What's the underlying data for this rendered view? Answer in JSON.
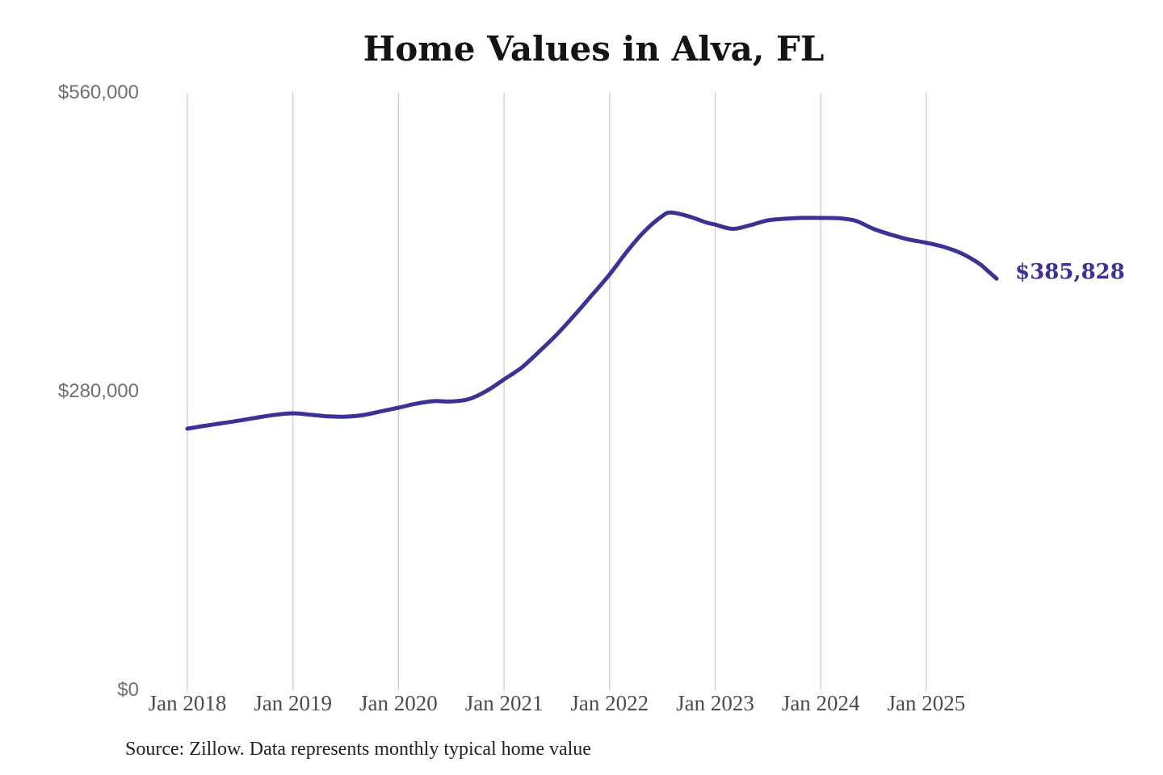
{
  "title": "Home Values in Alva, FL",
  "source_note": "Source: Zillow. Data represents monthly typical home value",
  "colors": {
    "line": "#3a3295",
    "annotation": "#3a3295",
    "gridline": "#cccccc",
    "y_tick_label": "#6f6f6f",
    "x_tick_label": "#4c4c4c",
    "title": "#141414",
    "source": "#222222",
    "background": "#ffffff"
  },
  "chart_data": {
    "type": "line",
    "title": "Home Values in Alva, FL",
    "unit": "USD",
    "ylim": [
      0,
      560000
    ],
    "grid": "vertical",
    "legend": "none",
    "final_value": 385828,
    "final_value_label": "$385,828",
    "y_ticks": [
      {
        "label": "$560,000",
        "value": 560000
      },
      {
        "label": "$280,000",
        "value": 280000
      },
      {
        "label": "$0",
        "value": 0
      }
    ],
    "x_ticks": [
      {
        "label": "Jan 2018",
        "year": 2018
      },
      {
        "label": "Jan 2019",
        "year": 2019
      },
      {
        "label": "Jan 2020",
        "year": 2020
      },
      {
        "label": "Jan 2021",
        "year": 2021
      },
      {
        "label": "Jan 2022",
        "year": 2022
      },
      {
        "label": "Jan 2023",
        "year": 2023
      },
      {
        "label": "Jan 2024",
        "year": 2024
      },
      {
        "label": "Jan 2025",
        "year": 2025
      }
    ],
    "series": [
      {
        "name": "Monthly typical home value",
        "points": [
          [
            "2018-01",
            245200
          ],
          [
            "2018-03",
            247900
          ],
          [
            "2018-05",
            250400
          ],
          [
            "2018-07",
            252900
          ],
          [
            "2018-09",
            255700
          ],
          [
            "2018-11",
            258200
          ],
          [
            "2019-01",
            259600
          ],
          [
            "2019-03",
            258300
          ],
          [
            "2019-05",
            256700
          ],
          [
            "2019-07",
            256500
          ],
          [
            "2019-09",
            258000
          ],
          [
            "2019-11",
            261400
          ],
          [
            "2020-01",
            264900
          ],
          [
            "2020-03",
            268600
          ],
          [
            "2020-05",
            271000
          ],
          [
            "2020-07",
            270700
          ],
          [
            "2020-09",
            272900
          ],
          [
            "2020-11",
            280500
          ],
          [
            "2021-01",
            291400
          ],
          [
            "2021-03",
            302500
          ],
          [
            "2021-05",
            317500
          ],
          [
            "2021-07",
            333500
          ],
          [
            "2021-09",
            351500
          ],
          [
            "2021-11",
            370500
          ],
          [
            "2022-01",
            389700
          ],
          [
            "2022-03",
            411500
          ],
          [
            "2022-05",
            430500
          ],
          [
            "2022-07",
            444500
          ],
          [
            "2022-08",
            447800
          ],
          [
            "2022-10",
            444200
          ],
          [
            "2022-12",
            438500
          ],
          [
            "2023-01",
            436500
          ],
          [
            "2023-03",
            432500
          ],
          [
            "2023-05",
            436000
          ],
          [
            "2023-07",
            440500
          ],
          [
            "2023-09",
            442000
          ],
          [
            "2023-11",
            442800
          ],
          [
            "2024-01",
            442700
          ],
          [
            "2024-03",
            442500
          ],
          [
            "2024-05",
            440000
          ],
          [
            "2024-07",
            432500
          ],
          [
            "2024-09",
            427000
          ],
          [
            "2024-11",
            422500
          ],
          [
            "2025-01",
            419500
          ],
          [
            "2025-03",
            415500
          ],
          [
            "2025-05",
            409500
          ],
          [
            "2025-07",
            400000
          ],
          [
            "2025-08",
            393000
          ],
          [
            "2025-09",
            385828
          ]
        ]
      }
    ]
  }
}
